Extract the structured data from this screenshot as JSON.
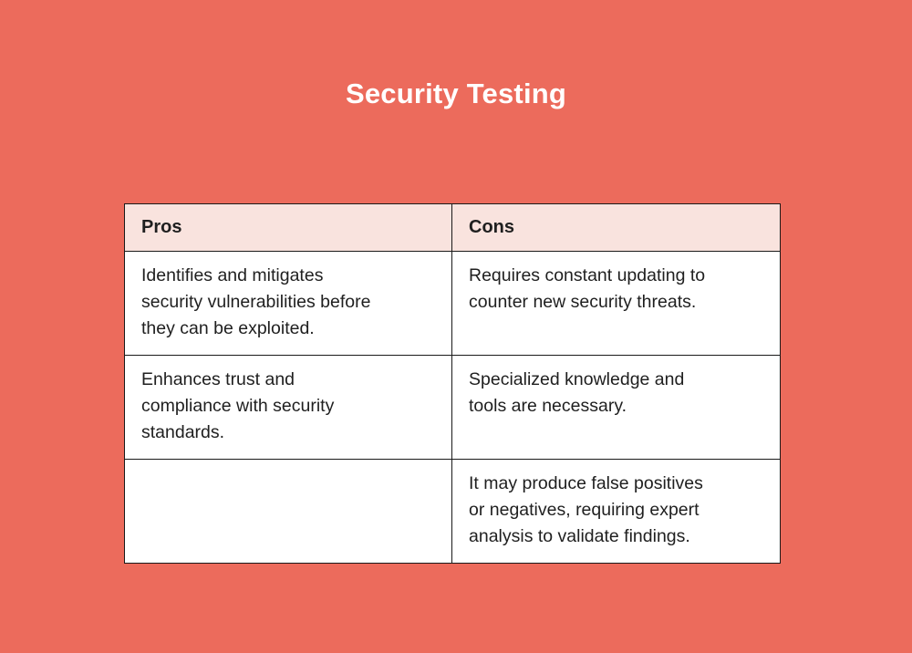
{
  "page": {
    "background_color": "#EC6B5C",
    "title": "Security Testing",
    "title_color": "#FFFFFF"
  },
  "table": {
    "header_bg": "#F9E3DE",
    "body_bg": "#FFFFFF",
    "border_color": "#1A1A1A",
    "text_color": "#1F1F1F",
    "columns": [
      "Pros",
      "Cons"
    ],
    "rows": [
      {
        "pros": "Identifies and mitigates\nsecurity vulnerabilities before\nthey can be exploited.",
        "cons": "Requires constant updating to\ncounter new security threats."
      },
      {
        "pros": "Enhances trust and\ncompliance with security\nstandards.",
        "cons": "Specialized knowledge and\ntools are necessary."
      },
      {
        "pros": "",
        "cons": "It may produce false positives\nor negatives, requiring expert\nanalysis to validate findings."
      }
    ]
  }
}
